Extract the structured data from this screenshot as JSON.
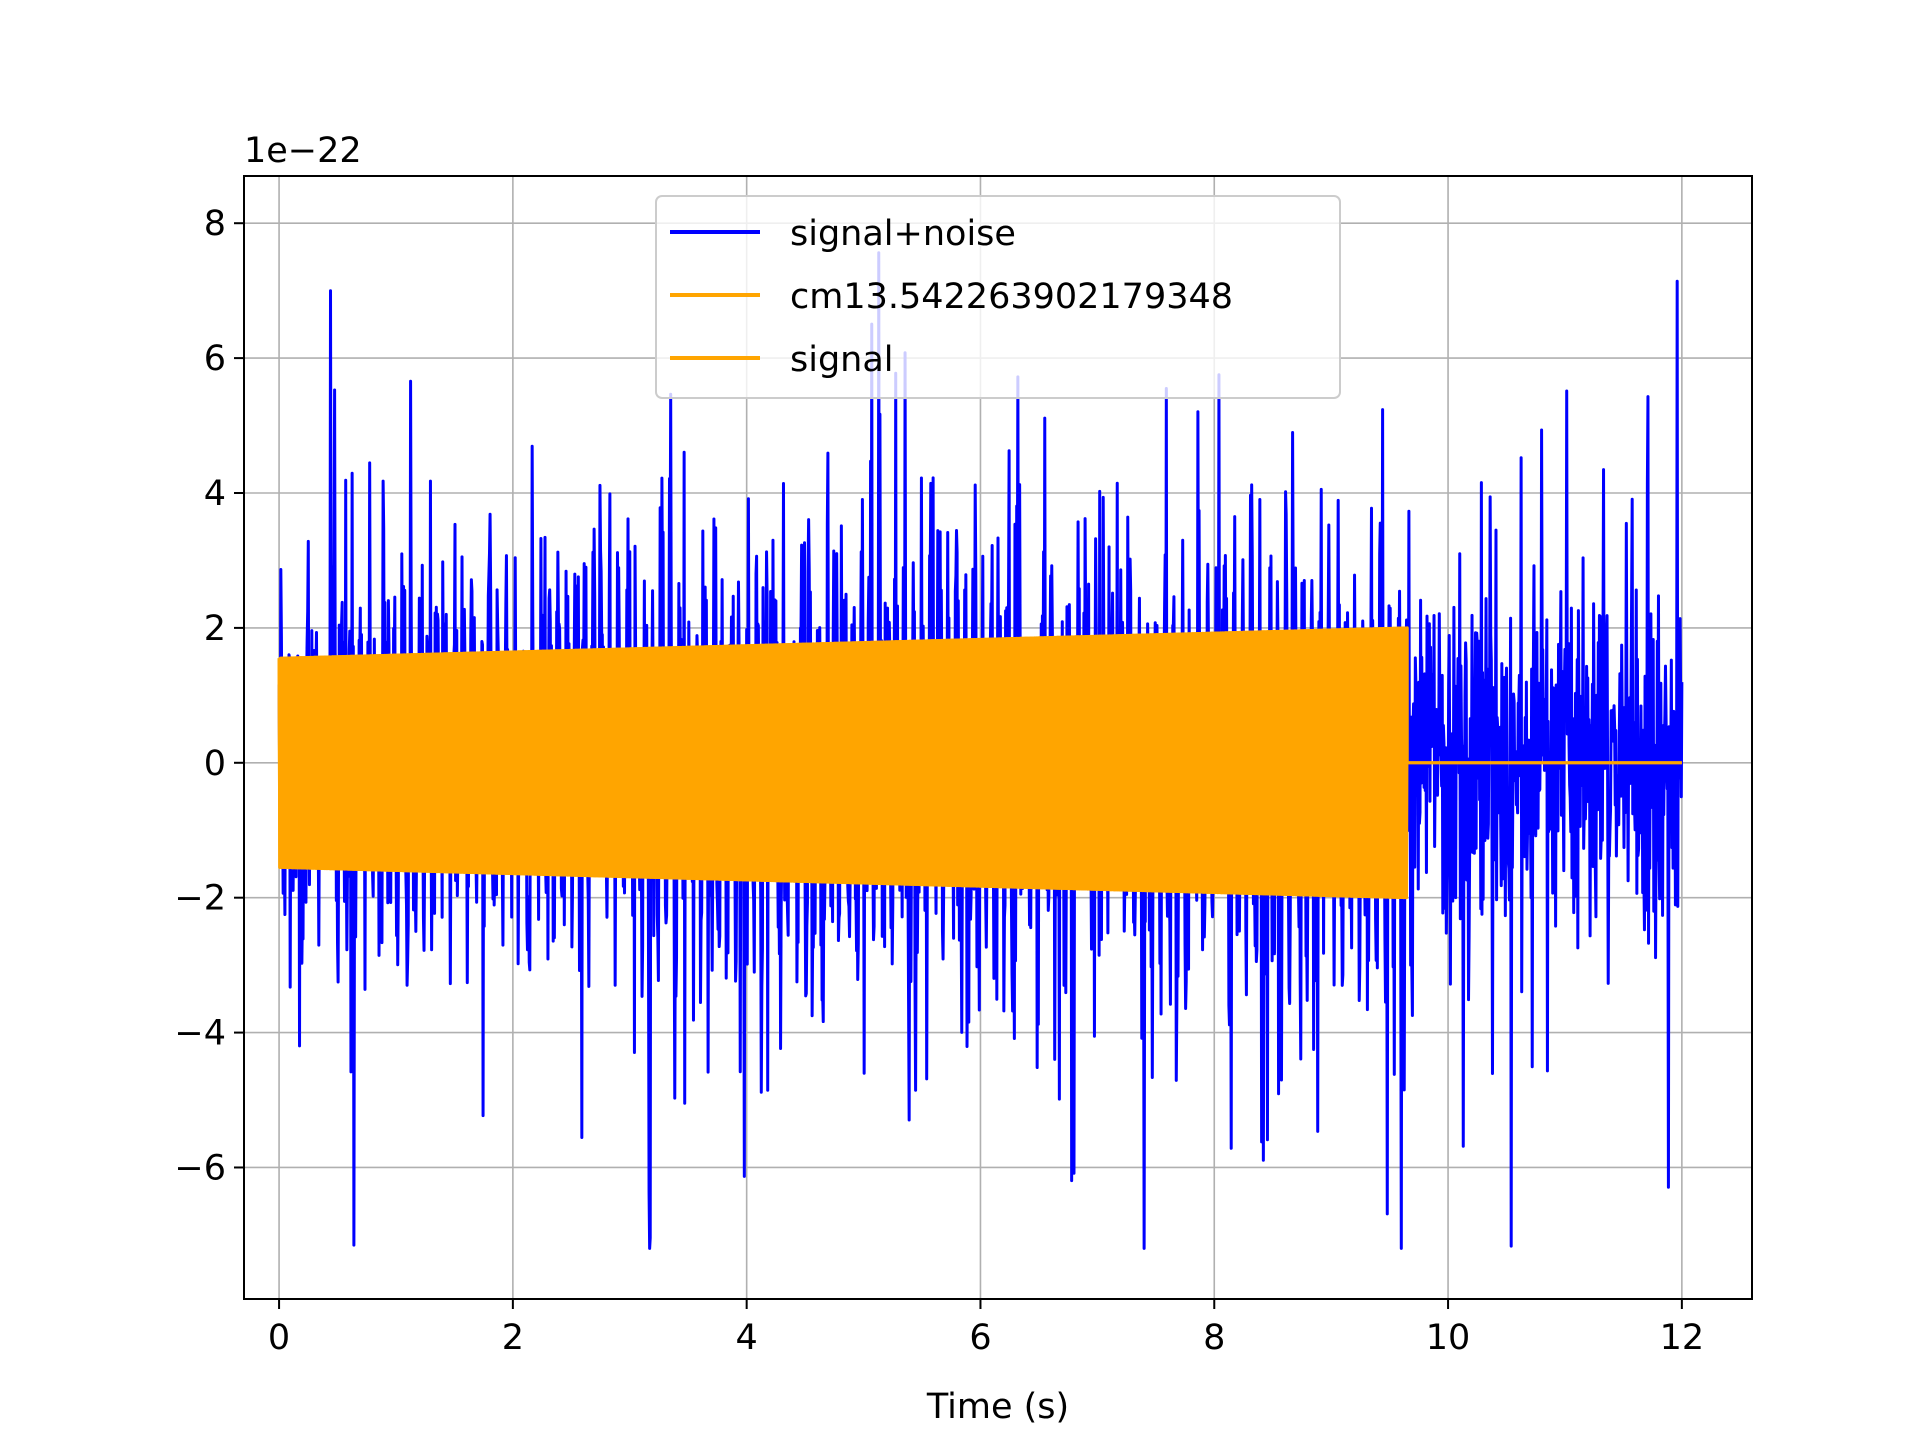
{
  "chart_data": {
    "type": "line",
    "title": "",
    "xlabel": "Time (s)",
    "ylabel": "",
    "y_offset_label": "1e−22",
    "xlim": [
      -0.3,
      12.6
    ],
    "ylim": [
      -7.95,
      8.7
    ],
    "x_ticks": [
      0,
      2,
      4,
      6,
      8,
      10,
      12
    ],
    "x_tick_labels": [
      "0",
      "2",
      "4",
      "6",
      "8",
      "10",
      "12"
    ],
    "y_ticks": [
      -6,
      -4,
      -2,
      0,
      2,
      4,
      6,
      8
    ],
    "y_tick_labels": [
      "−6",
      "−4",
      "−2",
      "0",
      "2",
      "4",
      "6",
      "8"
    ],
    "grid": true,
    "legend_position": "upper center",
    "series": [
      {
        "name": "signal+noise",
        "color": "#0000ff",
        "style": "noise",
        "x_range": [
          0,
          12
        ],
        "envelope": {
          "typical": 2.6,
          "peak_max": 8.0,
          "peak_min": -7.2
        }
      },
      {
        "name": "cm13.542263902179348",
        "color": "#ffa500",
        "style": "chirp",
        "x_range": [
          0,
          9.65
        ],
        "amplitude_start": 1.55,
        "amplitude_end": 2.0,
        "after_end_value": 0
      },
      {
        "name": "signal",
        "color": "#ffa500",
        "style": "chirp",
        "x_range": [
          0,
          9.65
        ],
        "amplitude_start": 1.55,
        "amplitude_end": 2.0,
        "after_end_value": 0
      }
    ]
  }
}
